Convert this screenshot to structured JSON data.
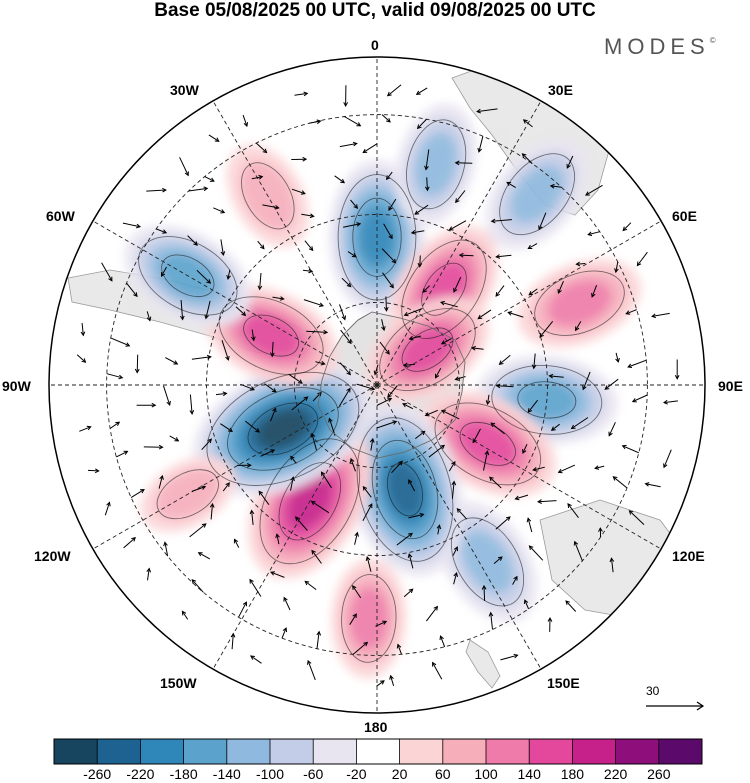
{
  "title": "Base 05/08/2025 00 UTC, valid 09/08/2025 00 UTC",
  "brand": "MODES",
  "brand_mark": "©",
  "longitude_labels": {
    "lon_0": "0",
    "lon_30e": "30E",
    "lon_60e": "60E",
    "lon_90e": "90E",
    "lon_120e": "120E",
    "lon_150e": "150E",
    "lon_180": "180",
    "lon_150w": "150W",
    "lon_120w": "120W",
    "lon_90w": "90W",
    "lon_60w": "60W",
    "lon_30w": "30W"
  },
  "reference_vector_label": "30",
  "colorbar": {
    "colors": [
      "#17445f",
      "#1d6290",
      "#2f86b9",
      "#5ba3cd",
      "#8fb9de",
      "#c4cde7",
      "#e8e4f0",
      "#ffffff",
      "#fbd4d6",
      "#f6aebb",
      "#ee7ba9",
      "#e3489c",
      "#c6208a",
      "#8e0e7b",
      "#5b0a6b"
    ],
    "ticks": [
      "-260",
      "-220",
      "-180",
      "-140",
      "-100",
      "-60",
      "-20",
      "20",
      "60",
      "100",
      "140",
      "180",
      "220",
      "260"
    ]
  },
  "chart_data": {
    "type": "heatmap",
    "projection": "south polar stereographic",
    "title": "Base 05/08/2025 00 UTC, valid 09/08/2025 00 UTC",
    "field": "anomaly (shaded) with wind vectors",
    "levels": [
      -260,
      -220,
      -180,
      -140,
      -100,
      -60,
      -20,
      20,
      60,
      100,
      140,
      180,
      220,
      260
    ],
    "reference_vector": 30,
    "anomalies": [
      {
        "lon": 0,
        "lat": -55,
        "value": -180
      },
      {
        "lon": 35,
        "lat": -62,
        "value": 150
      },
      {
        "lon": 55,
        "lat": -75,
        "value": 140
      },
      {
        "lon": 15,
        "lat": -38,
        "value": -110
      },
      {
        "lon": 40,
        "lat": -34,
        "value": -120
      },
      {
        "lon": 68,
        "lat": -40,
        "value": 120
      },
      {
        "lon": 95,
        "lat": -50,
        "value": -150
      },
      {
        "lon": 118,
        "lat": -60,
        "value": 160
      },
      {
        "lon": 148,
        "lat": -42,
        "value": -130
      },
      {
        "lon": 165,
        "lat": -64,
        "value": -230
      },
      {
        "lon": 182,
        "lat": -37,
        "value": 100
      },
      {
        "lon": 210,
        "lat": -58,
        "value": 210
      },
      {
        "lon": 245,
        "lat": -65,
        "value": -260
      },
      {
        "lon": 240,
        "lat": -40,
        "value": 60
      },
      {
        "lon": 295,
        "lat": -62,
        "value": 150
      },
      {
        "lon": 300,
        "lat": -40,
        "value": -140
      },
      {
        "lon": 330,
        "lat": -40,
        "value": 80
      }
    ]
  }
}
